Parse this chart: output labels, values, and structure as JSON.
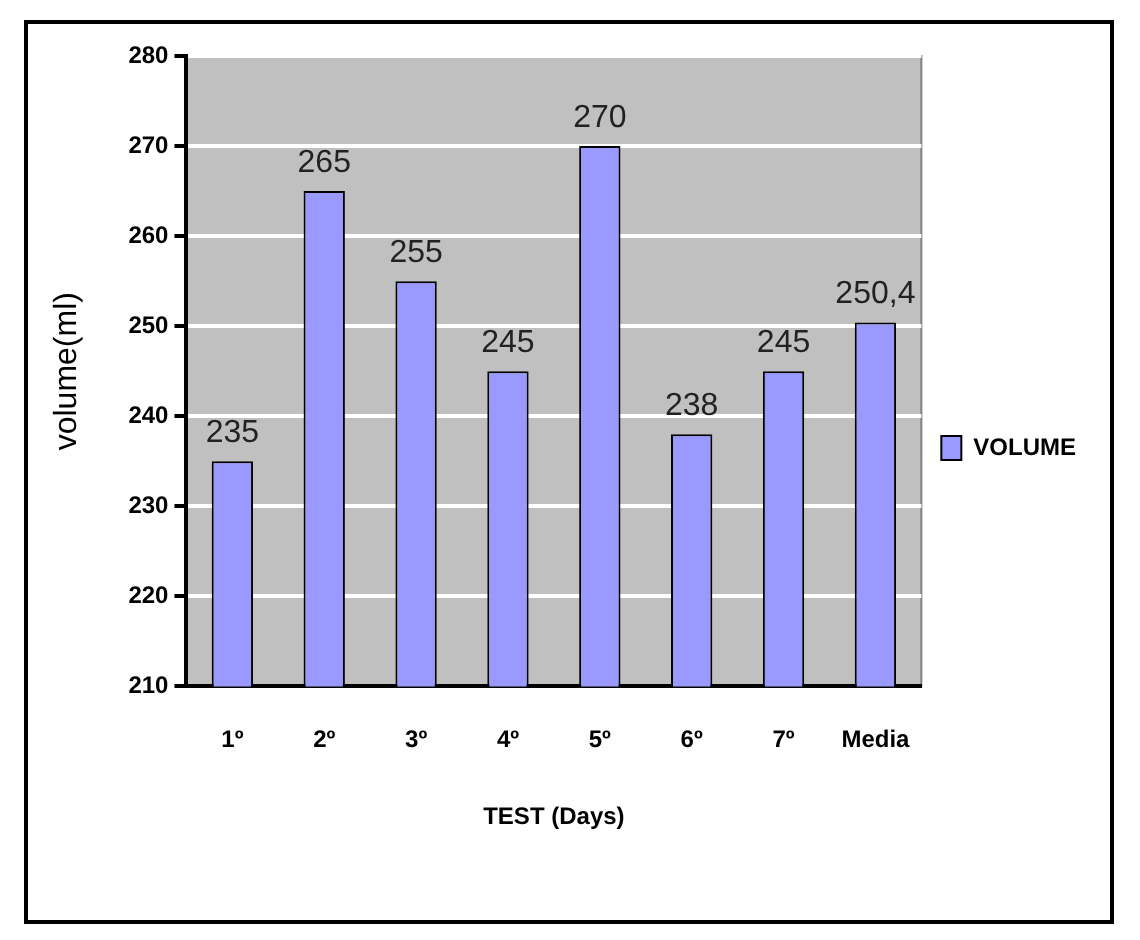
{
  "chart_data": {
    "type": "bar",
    "xlabel": "TEST (Days)",
    "ylabel": "volume(ml)",
    "categories": [
      "1º",
      "2º",
      "3º",
      "4º",
      "5º",
      "6º",
      "7º",
      "Media"
    ],
    "series": [
      {
        "name": "VOLUME",
        "color": "#9999ff",
        "values": [
          235,
          265,
          255,
          245,
          270,
          238,
          245,
          250.4
        ],
        "value_labels": [
          "235",
          "265",
          "255",
          "245",
          "270",
          "238",
          "245",
          "250,4"
        ]
      }
    ],
    "ylim": [
      210,
      280
    ],
    "yticks": [
      210,
      220,
      230,
      240,
      250,
      260,
      270,
      280
    ],
    "grid": "y",
    "legend": "right"
  }
}
